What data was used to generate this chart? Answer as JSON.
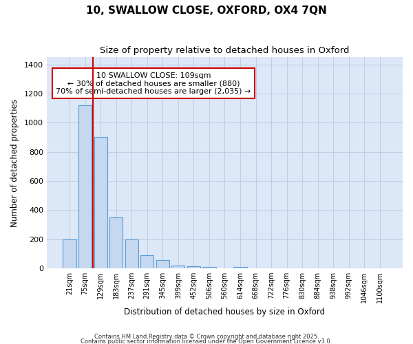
{
  "title_line1": "10, SWALLOW CLOSE, OXFORD, OX4 7QN",
  "title_line2": "Size of property relative to detached houses in Oxford",
  "xlabel": "Distribution of detached houses by size in Oxford",
  "ylabel": "Number of detached properties",
  "fig_background_color": "#ffffff",
  "plot_background_color": "#dce8f8",
  "bar_color": "#c5d8f0",
  "bar_edge_color": "#5b9bd5",
  "grid_color": "#b8c8e0",
  "annotation_box_text": "10 SWALLOW CLOSE: 109sqm\n← 30% of detached houses are smaller (880)\n70% of semi-detached houses are larger (2,035) →",
  "annotation_box_color": "#ffffff",
  "annotation_box_edge_color": "#cc0000",
  "red_line_color": "#cc0000",
  "footer_line1": "Contains HM Land Registry data © Crown copyright and database right 2025.",
  "footer_line2": "Contains public sector information licensed under the Open Government Licence v3.0.",
  "categories": [
    "21sqm",
    "75sqm",
    "129sqm",
    "183sqm",
    "237sqm",
    "291sqm",
    "345sqm",
    "399sqm",
    "452sqm",
    "506sqm",
    "560sqm",
    "614sqm",
    "668sqm",
    "722sqm",
    "776sqm",
    "830sqm",
    "884sqm",
    "938sqm",
    "992sqm",
    "1046sqm",
    "1100sqm"
  ],
  "values": [
    200,
    1120,
    900,
    350,
    200,
    90,
    55,
    20,
    15,
    10,
    0,
    10,
    0,
    0,
    0,
    0,
    0,
    0,
    0,
    0,
    0
  ],
  "ylim": [
    0,
    1450
  ],
  "yticks": [
    0,
    200,
    400,
    600,
    800,
    1000,
    1200,
    1400
  ],
  "red_line_x": 1.5,
  "property_size_sqm": 109
}
